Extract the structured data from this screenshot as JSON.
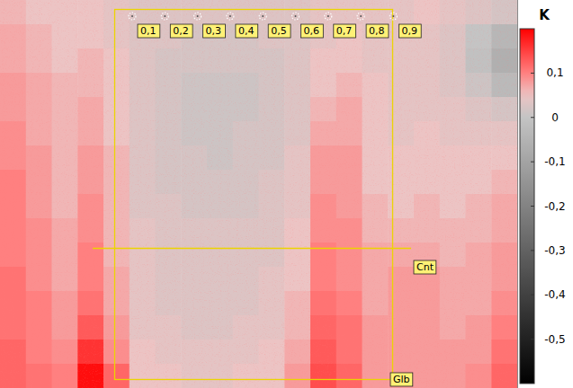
{
  "chart_data": {
    "type": "heatmap",
    "tick_labels": false,
    "cells": [
      [
        0.06,
        0.05,
        0.05,
        0.05,
        0.04,
        0.03,
        0.03,
        0.03,
        0.03,
        0.03,
        0.03,
        0.03,
        0.04,
        0.04,
        0.04,
        0.04,
        0.05,
        0.04,
        0.03,
        0.02
      ],
      [
        0.07,
        0.06,
        0.05,
        0.05,
        0.04,
        0.03,
        0.03,
        0.02,
        0.02,
        0.02,
        0.03,
        0.03,
        0.04,
        0.05,
        0.04,
        0.04,
        0.04,
        0.03,
        0.0,
        -0.04
      ],
      [
        0.07,
        0.06,
        0.05,
        0.06,
        0.05,
        0.03,
        0.02,
        0.02,
        0.02,
        0.02,
        0.02,
        0.03,
        0.05,
        0.05,
        0.04,
        0.04,
        0.04,
        0.03,
        -0.01,
        -0.06
      ],
      [
        0.08,
        0.07,
        0.06,
        0.06,
        0.05,
        0.03,
        0.02,
        0.01,
        0.01,
        0.01,
        0.02,
        0.03,
        0.05,
        0.06,
        0.05,
        0.04,
        0.04,
        0.03,
        0.01,
        -0.03
      ],
      [
        0.08,
        0.07,
        0.06,
        0.07,
        0.05,
        0.03,
        0.02,
        0.01,
        0.01,
        0.01,
        0.02,
        0.03,
        0.06,
        0.07,
        0.05,
        0.04,
        0.04,
        0.04,
        0.03,
        0.02
      ],
      [
        0.09,
        0.07,
        0.06,
        0.07,
        0.05,
        0.03,
        0.02,
        0.01,
        0.01,
        0.02,
        0.02,
        0.03,
        0.07,
        0.07,
        0.05,
        0.04,
        0.05,
        0.04,
        0.04,
        0.04
      ],
      [
        0.09,
        0.08,
        0.06,
        0.08,
        0.06,
        0.03,
        0.02,
        0.02,
        0.01,
        0.02,
        0.02,
        0.04,
        0.08,
        0.08,
        0.05,
        0.05,
        0.05,
        0.05,
        0.05,
        0.05
      ],
      [
        0.1,
        0.08,
        0.06,
        0.08,
        0.06,
        0.03,
        0.02,
        0.02,
        0.02,
        0.02,
        0.03,
        0.04,
        0.08,
        0.08,
        0.05,
        0.05,
        0.05,
        0.05,
        0.05,
        0.06
      ],
      [
        0.1,
        0.08,
        0.06,
        0.09,
        0.06,
        0.03,
        0.03,
        0.02,
        0.02,
        0.02,
        0.03,
        0.04,
        0.09,
        0.08,
        0.06,
        0.05,
        0.06,
        0.05,
        0.06,
        0.07
      ],
      [
        0.1,
        0.09,
        0.07,
        0.09,
        0.06,
        0.04,
        0.03,
        0.03,
        0.03,
        0.03,
        0.03,
        0.05,
        0.09,
        0.09,
        0.06,
        0.06,
        0.06,
        0.06,
        0.06,
        0.07
      ],
      [
        0.1,
        0.09,
        0.07,
        0.1,
        0.06,
        0.04,
        0.03,
        0.03,
        0.03,
        0.03,
        0.03,
        0.05,
        0.1,
        0.09,
        0.07,
        0.07,
        0.07,
        0.06,
        0.07,
        0.08
      ],
      [
        0.11,
        0.09,
        0.07,
        0.1,
        0.07,
        0.04,
        0.03,
        0.03,
        0.03,
        0.03,
        0.04,
        0.05,
        0.1,
        0.09,
        0.07,
        0.08,
        0.08,
        0.07,
        0.07,
        0.08
      ],
      [
        0.11,
        0.1,
        0.08,
        0.11,
        0.07,
        0.04,
        0.03,
        0.03,
        0.03,
        0.03,
        0.04,
        0.06,
        0.11,
        0.1,
        0.07,
        0.08,
        0.08,
        0.07,
        0.07,
        0.09
      ],
      [
        0.11,
        0.1,
        0.08,
        0.13,
        0.08,
        0.04,
        0.04,
        0.03,
        0.03,
        0.04,
        0.04,
        0.06,
        0.12,
        0.11,
        0.08,
        0.08,
        0.08,
        0.07,
        0.08,
        0.1
      ],
      [
        0.12,
        0.1,
        0.09,
        0.16,
        0.09,
        0.05,
        0.04,
        0.04,
        0.04,
        0.04,
        0.05,
        0.07,
        0.13,
        0.11,
        0.08,
        0.08,
        0.08,
        0.08,
        0.08,
        0.11
      ],
      [
        0.12,
        0.11,
        0.1,
        0.19,
        0.12,
        0.05,
        0.05,
        0.04,
        0.04,
        0.05,
        0.05,
        0.08,
        0.14,
        0.12,
        0.08,
        0.08,
        0.08,
        0.08,
        0.09,
        0.12
      ]
    ],
    "colorbar": {
      "label": "K",
      "range": [
        -0.6,
        0.2
      ],
      "ticks": [
        {
          "value": 0.1,
          "label": "0,1"
        },
        0,
        {
          "value": -0.1,
          "label": "-0,1"
        },
        {
          "value": -0.2,
          "label": "-0,2"
        },
        {
          "value": -0.3,
          "label": "-0,3"
        },
        {
          "value": -0.4,
          "label": "-0,4"
        },
        {
          "value": -0.5,
          "label": "-0,5"
        }
      ]
    },
    "markers": [
      {
        "value": 0.1,
        "label": "0,1"
      },
      {
        "value": 0.2,
        "label": "0,2"
      },
      {
        "value": 0.3,
        "label": "0,3"
      },
      {
        "value": 0.4,
        "label": "0,4"
      },
      {
        "value": 0.5,
        "label": "0,5"
      },
      {
        "value": 0.6,
        "label": "0,6"
      },
      {
        "value": 0.7,
        "label": "0,7"
      },
      {
        "value": 0.8,
        "label": "0,8"
      },
      {
        "value": 0.9,
        "label": "0,9"
      }
    ],
    "annotations": [
      {
        "label": "Cnt"
      },
      {
        "label": "Glb"
      }
    ]
  }
}
